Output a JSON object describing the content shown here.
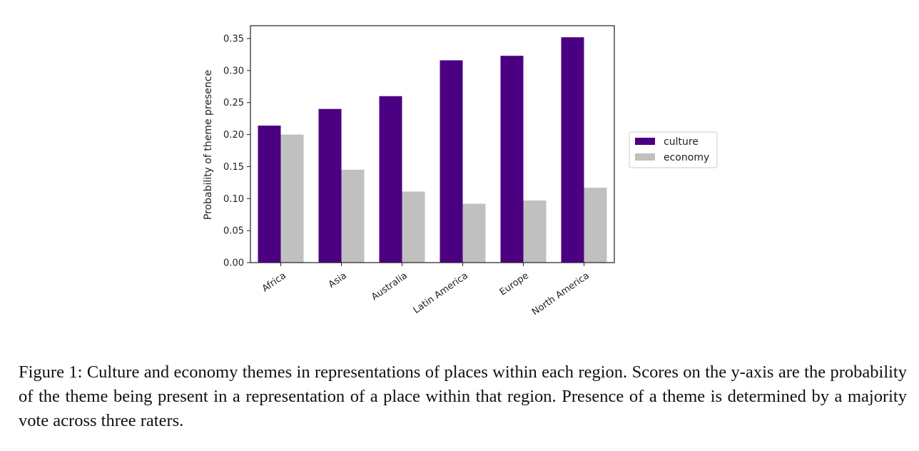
{
  "chart_data": {
    "type": "bar",
    "title": "",
    "xlabel": "",
    "ylabel": "Probability of theme presence",
    "categories": [
      "Africa",
      "Asia",
      "Australia",
      "Latin America",
      "Europe",
      "North America"
    ],
    "series": [
      {
        "name": "culture",
        "color": "#4b0082",
        "values": [
          0.214,
          0.24,
          0.26,
          0.316,
          0.323,
          0.352
        ]
      },
      {
        "name": "economy",
        "color": "#c0c0c0",
        "values": [
          0.2,
          0.145,
          0.111,
          0.092,
          0.097,
          0.117
        ]
      }
    ],
    "ylim": [
      0,
      0.37
    ],
    "yticks": [
      "0.00",
      "0.05",
      "0.10",
      "0.15",
      "0.20",
      "0.25",
      "0.30",
      "0.35"
    ],
    "grid": false,
    "legend_position": "right"
  },
  "caption": "Figure 1: Culture and economy themes in representations of places within each region. Scores on the y-axis are the probability of the theme being present in a representation of a place within that region. Presence of a theme is determined by a majority vote across three raters."
}
